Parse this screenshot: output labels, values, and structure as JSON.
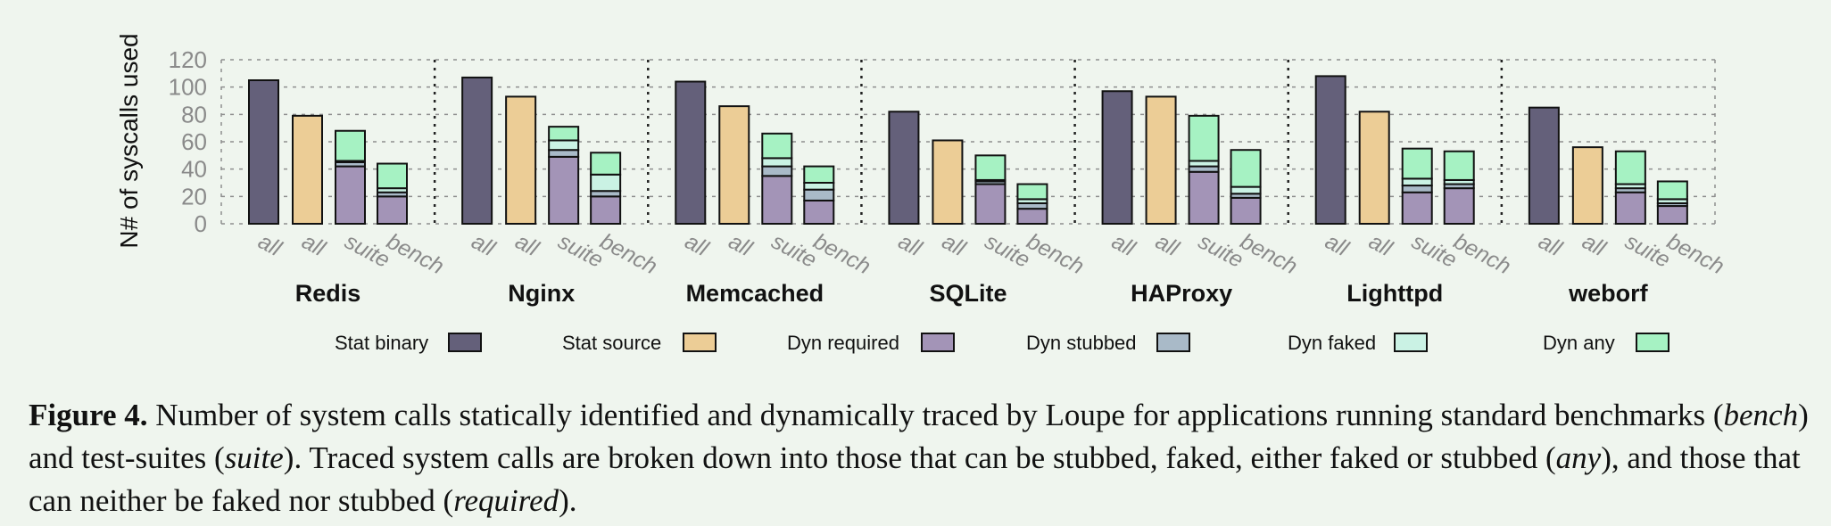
{
  "chart_data": {
    "type": "bar",
    "stacked": true,
    "ylabel": "N# of syscalls used",
    "ylim": [
      0,
      120
    ],
    "yticks": [
      0,
      20,
      40,
      60,
      80,
      100,
      120
    ],
    "grid": true,
    "legend_position": "bottom",
    "bar_labels": [
      "all",
      "all",
      "suite",
      "bench"
    ],
    "legend": [
      {
        "name": "Stat binary",
        "color": "#64607a"
      },
      {
        "name": "Stat source",
        "color": "#eccd96"
      },
      {
        "name": "Dyn required",
        "color": "#a394b7"
      },
      {
        "name": "Dyn stubbed",
        "color": "#a9bac8"
      },
      {
        "name": "Dyn faked",
        "color": "#caf2e4"
      },
      {
        "name": "Dyn any",
        "color": "#a6f2c3"
      }
    ],
    "groups": [
      {
        "name": "Redis",
        "stat_binary": 105,
        "stat_source": 79,
        "suite": {
          "required": 42,
          "stubbed": 3,
          "faked": 1,
          "any": 22
        },
        "bench": {
          "required": 20,
          "stubbed": 3,
          "faked": 3,
          "any": 18
        }
      },
      {
        "name": "Nginx",
        "stat_binary": 107,
        "stat_source": 93,
        "suite": {
          "required": 49,
          "stubbed": 5,
          "faked": 7,
          "any": 10
        },
        "bench": {
          "required": 20,
          "stubbed": 4,
          "faked": 12,
          "any": 16
        }
      },
      {
        "name": "Memcached",
        "stat_binary": 104,
        "stat_source": 86,
        "suite": {
          "required": 35,
          "stubbed": 7,
          "faked": 6,
          "any": 18
        },
        "bench": {
          "required": 17,
          "stubbed": 8,
          "faked": 5,
          "any": 12
        }
      },
      {
        "name": "SQLite",
        "stat_binary": 82,
        "stat_source": 61,
        "suite": {
          "required": 29,
          "stubbed": 2,
          "faked": 1,
          "any": 18
        },
        "bench": {
          "required": 11,
          "stubbed": 4,
          "faked": 3,
          "any": 11
        }
      },
      {
        "name": "HAProxy",
        "stat_binary": 97,
        "stat_source": 93,
        "suite": {
          "required": 38,
          "stubbed": 4,
          "faked": 4,
          "any": 33
        },
        "bench": {
          "required": 19,
          "stubbed": 3,
          "faked": 5,
          "any": 27
        }
      },
      {
        "name": "Lighttpd",
        "stat_binary": 108,
        "stat_source": 82,
        "suite": {
          "required": 23,
          "stubbed": 5,
          "faked": 5,
          "any": 22
        },
        "bench": {
          "required": 26,
          "stubbed": 3,
          "faked": 3,
          "any": 21
        }
      },
      {
        "name": "weborf",
        "stat_binary": 85,
        "stat_source": 56,
        "suite": {
          "required": 23,
          "stubbed": 3,
          "faked": 3,
          "any": 24
        },
        "bench": {
          "required": 13,
          "stubbed": 2,
          "faked": 3,
          "any": 13
        }
      }
    ]
  },
  "caption": {
    "label": "Figure 4.",
    "text": [
      {
        "t": " Number of system calls statically identified and dynamically traced by Loupe for applications running standard benchmarks ("
      },
      {
        "t": "bench",
        "i": true
      },
      {
        "t": ") and test-suites ("
      },
      {
        "t": "suite",
        "i": true
      },
      {
        "t": "). Traced system calls are broken down into those that can be stubbed, faked, either faked or stubbed ("
      },
      {
        "t": "any",
        "i": true
      },
      {
        "t": "), and those that can neither be faked nor stubbed ("
      },
      {
        "t": "required",
        "i": true
      },
      {
        "t": ")."
      }
    ]
  }
}
